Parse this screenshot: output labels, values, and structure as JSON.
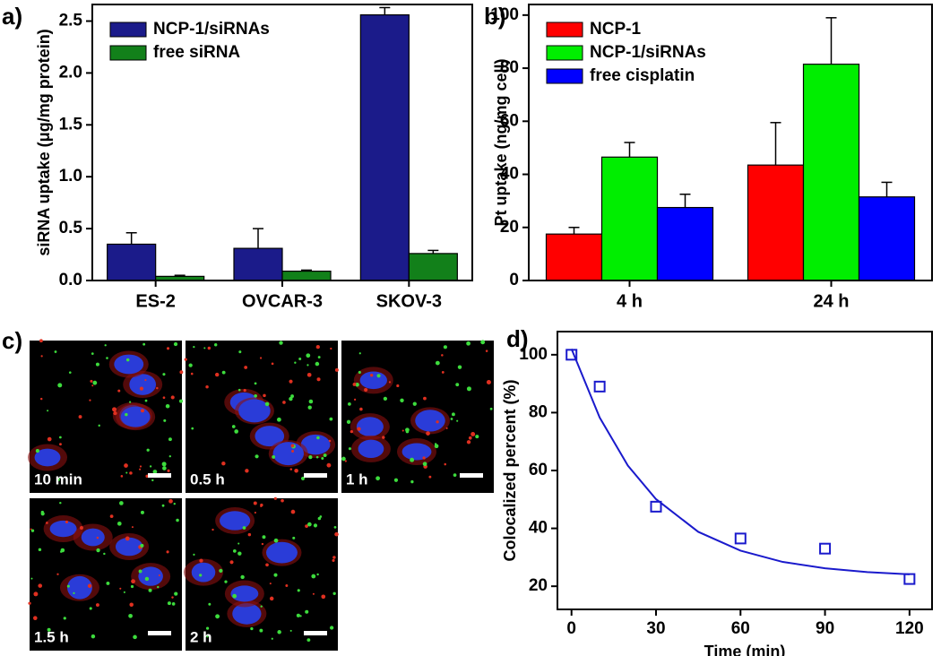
{
  "chart_data": [
    {
      "type": "bar",
      "panel_label": "a)",
      "ylabel": "siRNA uptake (μg/mg protein)",
      "categories": [
        "ES-2",
        "OVCAR-3",
        "SKOV-3"
      ],
      "series": [
        {
          "name": "NCP-1/siRNAs",
          "color": "#1b1b8a",
          "values": [
            0.35,
            0.31,
            2.56
          ],
          "errors": [
            0.11,
            0.19,
            0.07
          ]
        },
        {
          "name": "free siRNA",
          "color": "#12801a",
          "values": [
            0.04,
            0.09,
            0.26
          ],
          "errors": [
            0.01,
            0.01,
            0.03
          ]
        }
      ],
      "ylim": [
        0,
        2.66
      ],
      "yticks": [
        {
          "value": 0,
          "label": "0.0"
        },
        0.5,
        {
          "value": 1,
          "label": "1.0"
        },
        1.5,
        {
          "value": 2,
          "label": "2.0"
        },
        2.5
      ],
      "legend": "top-left"
    },
    {
      "type": "bar",
      "panel_label": "b)",
      "ylabel": "Pt uptake (ng/mg cell)",
      "categories": [
        "4 h",
        "24 h"
      ],
      "series": [
        {
          "name": "NCP-1",
          "color": "#ff0000",
          "values": [
            17.5,
            43.5
          ],
          "errors": [
            2.5,
            16
          ]
        },
        {
          "name": "NCP-1/siRNAs",
          "color": "#00ee00",
          "values": [
            46.5,
            81.5
          ],
          "errors": [
            5.5,
            17.5
          ]
        },
        {
          "name": "free cisplatin",
          "color": "#0000ff",
          "values": [
            27.5,
            31.5
          ],
          "errors": [
            5,
            5.5
          ]
        }
      ],
      "ylim": [
        0,
        104
      ],
      "yticks": [
        0,
        20,
        40,
        60,
        80,
        100
      ],
      "legend": "top-left"
    },
    {
      "type": "scatter",
      "panel_label": "d)",
      "xlabel": "Time (min)",
      "ylabel": "Colocalized percent (%)",
      "series": [
        {
          "type": "scatter",
          "color": "#1a1acc",
          "x": [
            0,
            10,
            30,
            60,
            90,
            120
          ],
          "values": [
            100,
            89,
            47.5,
            36.5,
            33,
            22.5
          ]
        },
        {
          "type": "line",
          "color": "#1a1acc",
          "x": [
            0,
            10,
            20,
            30,
            45,
            60,
            75,
            90,
            105,
            120
          ],
          "values": [
            102,
            78.3,
            61.7,
            50.1,
            38.8,
            32.3,
            28.4,
            26.2,
            24.9,
            24.1
          ]
        }
      ],
      "xlim": [
        -5,
        128
      ],
      "xticks": [
        0,
        30,
        60,
        90,
        120
      ],
      "ylim": [
        12,
        108
      ],
      "yticks": [
        20,
        40,
        60,
        80,
        100
      ]
    }
  ],
  "micrographs": {
    "panel_label": "c)",
    "labels": [
      "10 min",
      "0.5 h",
      "1 h",
      "1.5 h",
      "2 h"
    ]
  }
}
